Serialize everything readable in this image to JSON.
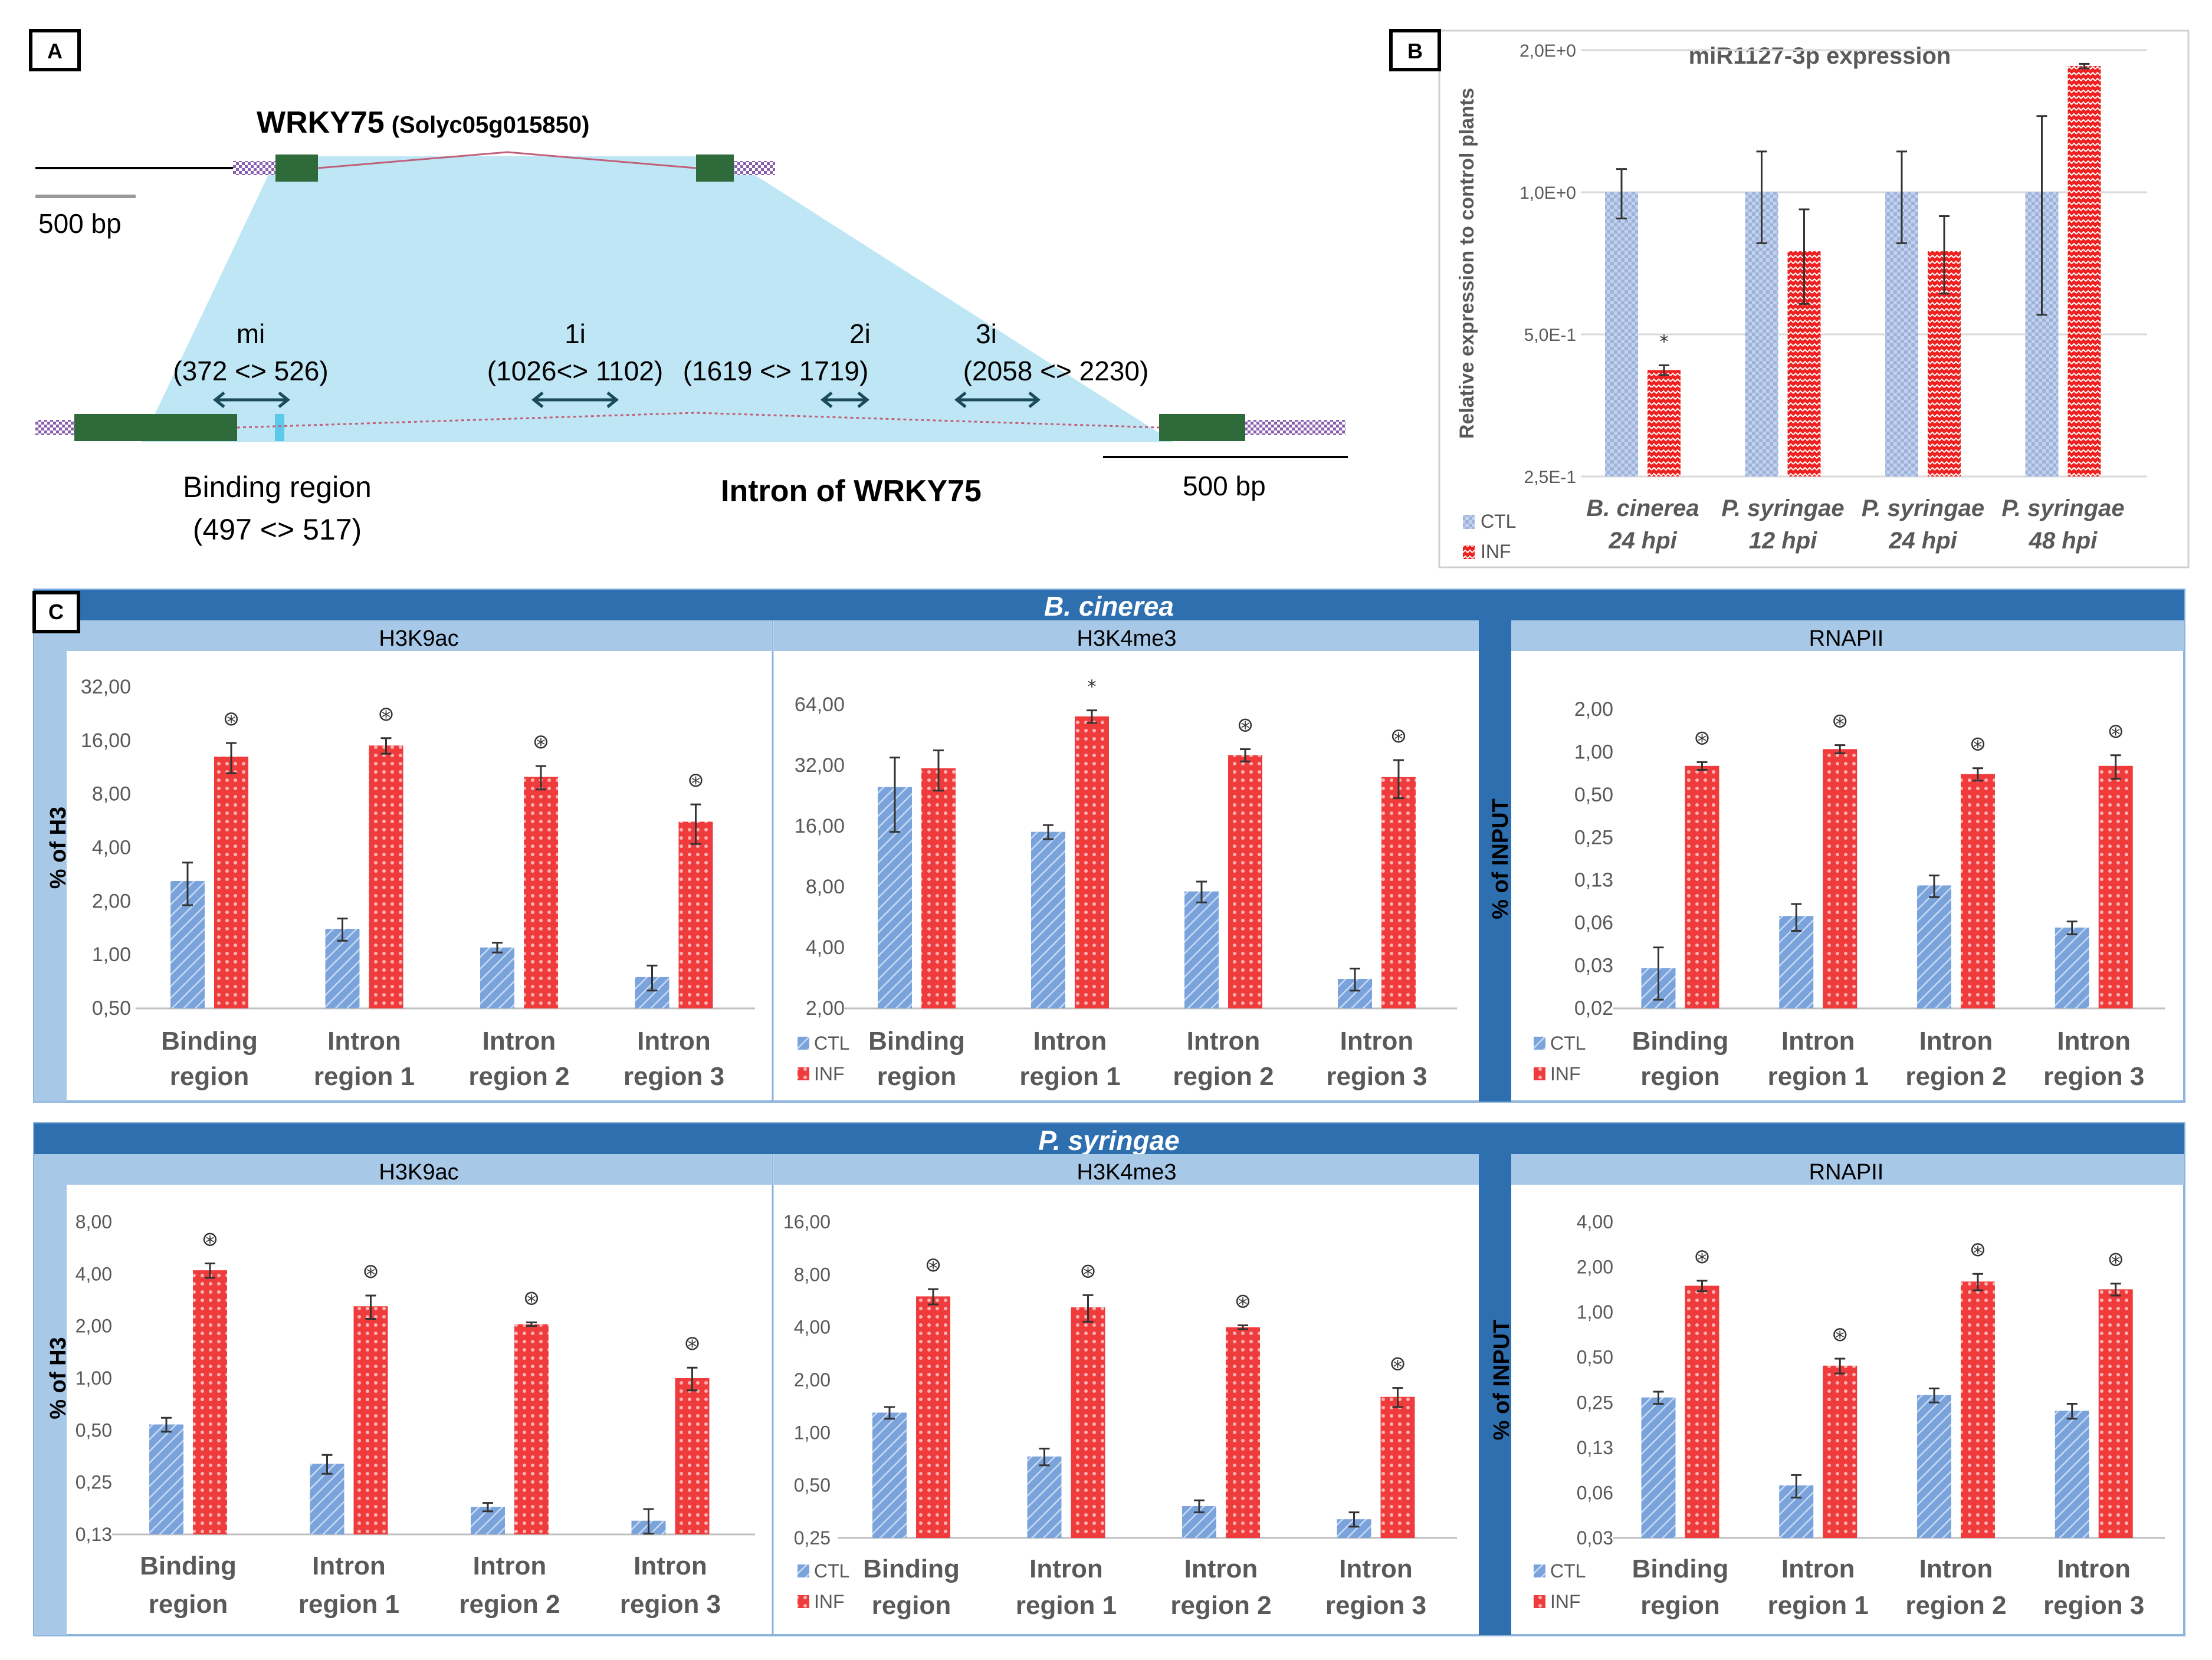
{
  "panels": {
    "a": "A",
    "b": "B",
    "c": "C"
  },
  "panel_a": {
    "gene_name": "WRKY75",
    "gene_id": "(Solyc05g015850)",
    "scale_top": "500 bp",
    "scale_bottom": "500 bp",
    "binding_region_label": "Binding region",
    "binding_region_coords": "(497 <> 517)",
    "intron_label": "Intron of WRKY75",
    "regions": [
      {
        "name": "mi",
        "coords": "(372 <> 526)"
      },
      {
        "name": "1i",
        "coords": "(1026<> 1102)"
      },
      {
        "name": "2i",
        "coords": "(1619 <> 1719)"
      },
      {
        "name": "3i",
        "coords": "(2058 <> 2230)"
      }
    ]
  },
  "colors": {
    "ctl": "#5b8fd0",
    "inf": "#ef3b3b",
    "header_dark": "#2e6fb0",
    "header_light": "#a8c8e8",
    "diagram_fill": "#bfe6f5",
    "exon": "#2f6b3a"
  },
  "chart_data": [
    {
      "id": "b",
      "type": "bar",
      "title": "miR1127-3p expression",
      "ylabel": "Relative expression to control plants",
      "scale": "log2",
      "yticks": [
        "2,0E+0",
        "1,0E+0",
        "5,0E-1",
        "2,5E-1"
      ],
      "ytick_values": [
        2.0,
        1.0,
        0.5,
        0.25
      ],
      "ylim": [
        0.25,
        2.0
      ],
      "categories": [
        [
          "B. cinerea",
          "24 hpi"
        ],
        [
          "P. syringae",
          "12 hpi"
        ],
        [
          "P. syringae",
          "24 hpi"
        ],
        [
          "P. syringae",
          "48 hpi"
        ]
      ],
      "series": [
        {
          "name": "CTL",
          "values": [
            1.0,
            1.0,
            1.0,
            1.0
          ],
          "errors": [
            0.12,
            0.22,
            0.22,
            0.45
          ]
        },
        {
          "name": "INF",
          "values": [
            0.42,
            0.75,
            0.75,
            1.85
          ],
          "errors": [
            0.01,
            0.17,
            0.14,
            0.02
          ]
        }
      ],
      "annotations": [
        "*",
        "",
        "",
        ""
      ]
    },
    {
      "id": "c-bc-h3k9ac",
      "type": "bar",
      "group": "B. cinerea",
      "title": "H3K9ac",
      "ylabel": "% of H3",
      "scale": "log2",
      "yticks": [
        "32,00",
        "16,00",
        "8,00",
        "4,00",
        "2,00",
        "1,00",
        "0,50"
      ],
      "ytick_values": [
        32,
        16,
        8,
        4,
        2,
        1,
        0.5
      ],
      "ylim": [
        0.5,
        32
      ],
      "categories": [
        [
          "Binding",
          "region"
        ],
        [
          "Intron",
          "region 1"
        ],
        [
          "Intron",
          "region 2"
        ],
        [
          "Intron",
          "region 3"
        ]
      ],
      "series": [
        {
          "name": "CTL",
          "values": [
            2.6,
            1.4,
            1.1,
            0.75
          ],
          "errors": [
            0.7,
            0.2,
            0.07,
            0.12
          ]
        },
        {
          "name": "INF",
          "values": [
            13.0,
            15.0,
            10.0,
            5.6
          ],
          "errors": [
            2.5,
            1.5,
            1.5,
            1.4
          ]
        }
      ],
      "annotations": [
        "⊛",
        "⊛",
        "⊛",
        "⊛"
      ]
    },
    {
      "id": "c-bc-h3k4me3",
      "type": "bar",
      "group": "B. cinerea",
      "title": "H3K4me3",
      "ylabel": "",
      "scale": "log2",
      "yticks": [
        "64,00",
        "32,00",
        "16,00",
        "8,00",
        "4,00",
        "2,00"
      ],
      "ytick_values": [
        64,
        32,
        16,
        8,
        4,
        2
      ],
      "ylim": [
        2,
        64
      ],
      "categories": [
        [
          "Binding",
          "region"
        ],
        [
          "Intron",
          "region 1"
        ],
        [
          "Intron",
          "region 2"
        ],
        [
          "Intron",
          "region 3"
        ]
      ],
      "series": [
        {
          "name": "CTL",
          "values": [
            25.0,
            15.0,
            7.6,
            2.8
          ],
          "errors": [
            10.0,
            1.2,
            0.9,
            0.35
          ]
        },
        {
          "name": "INF",
          "values": [
            31.0,
            56.0,
            36.0,
            28.0
          ],
          "errors": [
            7.0,
            4.0,
            2.5,
            6.0
          ]
        }
      ],
      "annotations": [
        "",
        "*",
        "⊛",
        "⊛"
      ]
    },
    {
      "id": "c-bc-rnapii",
      "type": "bar",
      "group": "B. cinerea",
      "title": "RNAPII",
      "ylabel": "% of INPUT",
      "scale": "log2",
      "yticks": [
        "2,00",
        "1,00",
        "0,50",
        "0,25",
        "0,13",
        "0,06",
        "0,03",
        "0,02"
      ],
      "ytick_values": [
        2,
        1,
        0.5,
        0.25,
        0.125,
        0.0625,
        0.03125,
        0.015625
      ],
      "ylim": [
        0.015625,
        2
      ],
      "categories": [
        [
          "Binding",
          "region"
        ],
        [
          "Intron",
          "region 1"
        ],
        [
          "Intron",
          "region 2"
        ],
        [
          "Intron",
          "region 3"
        ]
      ],
      "series": [
        {
          "name": "CTL",
          "values": [
            0.03,
            0.07,
            0.115,
            0.058
          ],
          "errors": [
            0.012,
            0.015,
            0.02,
            0.006
          ]
        },
        {
          "name": "INF",
          "values": [
            0.8,
            1.05,
            0.7,
            0.8
          ],
          "errors": [
            0.05,
            0.07,
            0.07,
            0.15
          ]
        }
      ],
      "annotations": [
        "⊛",
        "⊛",
        "⊛",
        "⊛"
      ]
    },
    {
      "id": "c-ps-h3k9ac",
      "type": "bar",
      "group": "P. syringae",
      "title": "H3K9ac",
      "ylabel": "% of H3",
      "scale": "log2",
      "yticks": [
        "8,00",
        "4,00",
        "2,00",
        "1,00",
        "0,50",
        "0,25",
        "0,13"
      ],
      "ytick_values": [
        8,
        4,
        2,
        1,
        0.5,
        0.25,
        0.125
      ],
      "ylim": [
        0.125,
        8
      ],
      "categories": [
        [
          "Binding",
          "region"
        ],
        [
          "Intron",
          "region 1"
        ],
        [
          "Intron",
          "region 2"
        ],
        [
          "Intron",
          "region 3"
        ]
      ],
      "series": [
        {
          "name": "CTL",
          "values": [
            0.54,
            0.32,
            0.18,
            0.15
          ],
          "errors": [
            0.05,
            0.04,
            0.01,
            0.025
          ]
        },
        {
          "name": "INF",
          "values": [
            4.2,
            2.6,
            2.05,
            1.0
          ],
          "errors": [
            0.4,
            0.4,
            0.05,
            0.15
          ]
        }
      ],
      "annotations": [
        "⊛",
        "⊛",
        "⊛",
        "⊛"
      ]
    },
    {
      "id": "c-ps-h3k4me3",
      "type": "bar",
      "group": "P. syringae",
      "title": "H3K4me3",
      "ylabel": "",
      "scale": "log2",
      "yticks": [
        "16,00",
        "8,00",
        "4,00",
        "2,00",
        "1,00",
        "0,50",
        "0,25"
      ],
      "ytick_values": [
        16,
        8,
        4,
        2,
        1,
        0.5,
        0.25
      ],
      "ylim": [
        0.25,
        16
      ],
      "categories": [
        [
          "Binding",
          "region"
        ],
        [
          "Intron",
          "region 1"
        ],
        [
          "Intron",
          "region 2"
        ],
        [
          "Intron",
          "region 3"
        ]
      ],
      "series": [
        {
          "name": "CTL",
          "values": [
            1.3,
            0.73,
            0.38,
            0.32
          ],
          "errors": [
            0.1,
            0.08,
            0.03,
            0.03
          ]
        },
        {
          "name": "INF",
          "values": [
            6.0,
            5.2,
            4.0,
            1.6
          ],
          "errors": [
            0.6,
            0.9,
            0.1,
            0.2
          ]
        }
      ],
      "annotations": [
        "⊛",
        "⊛",
        "⊛",
        "⊛"
      ]
    },
    {
      "id": "c-ps-rnapii",
      "type": "bar",
      "group": "P. syringae",
      "title": "RNAPII",
      "ylabel": "% of INPUT",
      "scale": "log2",
      "yticks": [
        "4,00",
        "2,00",
        "1,00",
        "0,50",
        "0,25",
        "0,13",
        "0,06",
        "0,03"
      ],
      "ytick_values": [
        4,
        2,
        1,
        0.5,
        0.25,
        0.125,
        0.0625,
        0.03125
      ],
      "ylim": [
        0.03125,
        4
      ],
      "categories": [
        [
          "Binding",
          "region"
        ],
        [
          "Intron",
          "region 1"
        ],
        [
          "Intron",
          "region 2"
        ],
        [
          "Intron",
          "region 3"
        ]
      ],
      "series": [
        {
          "name": "CTL",
          "values": [
            0.27,
            0.07,
            0.28,
            0.22
          ],
          "errors": [
            0.025,
            0.012,
            0.03,
            0.025
          ]
        },
        {
          "name": "INF",
          "values": [
            1.5,
            0.44,
            1.6,
            1.42
          ],
          "errors": [
            0.12,
            0.05,
            0.2,
            0.13
          ]
        }
      ],
      "annotations": [
        "⊛",
        "⊛",
        "⊛",
        "⊛"
      ]
    }
  ],
  "groups": {
    "bc": "B. cinerea",
    "ps": "P. syringae"
  },
  "legend": {
    "ctl": "CTL",
    "inf": "INF"
  }
}
